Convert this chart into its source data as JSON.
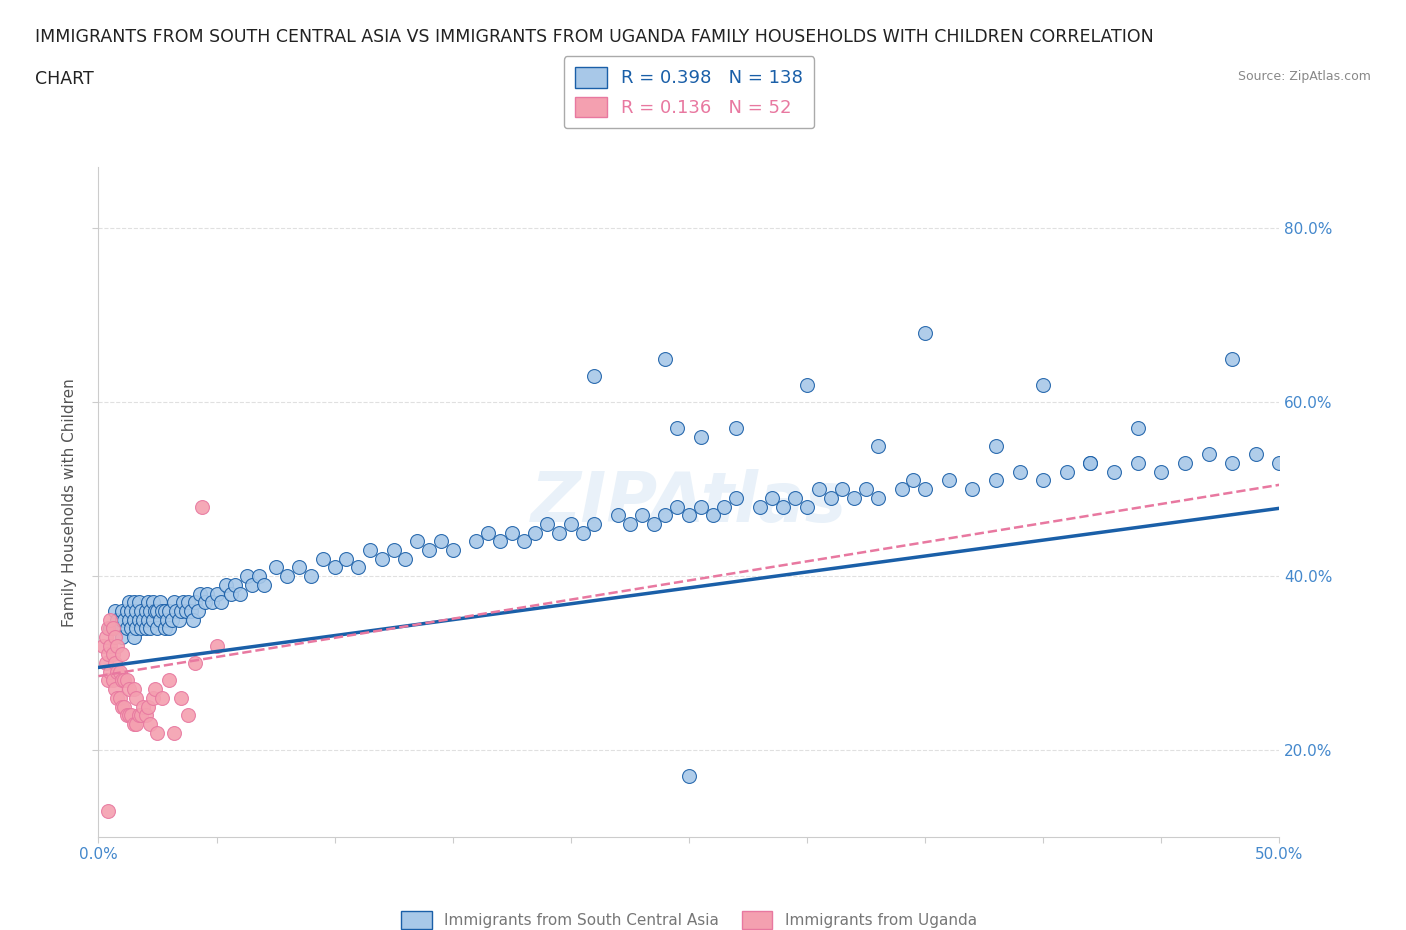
{
  "title_line1": "IMMIGRANTS FROM SOUTH CENTRAL ASIA VS IMMIGRANTS FROM UGANDA FAMILY HOUSEHOLDS WITH CHILDREN CORRELATION",
  "title_line2": "CHART",
  "source": "Source: ZipAtlas.com",
  "ylabel": "Family Households with Children",
  "xlim": [
    0.0,
    0.5
  ],
  "ylim": [
    0.1,
    0.87
  ],
  "xticks": [
    0.0,
    0.05,
    0.1,
    0.15,
    0.2,
    0.25,
    0.3,
    0.35,
    0.4,
    0.45,
    0.5
  ],
  "yticks": [
    0.2,
    0.4,
    0.6,
    0.8
  ],
  "blue_R": 0.398,
  "blue_N": 138,
  "pink_R": 0.136,
  "pink_N": 52,
  "blue_color": "#a8c8e8",
  "pink_color": "#f4a0b0",
  "blue_line_color": "#1a5fa8",
  "pink_line_color": "#e878a0",
  "legend_label_blue": "Immigrants from South Central Asia",
  "legend_label_pink": "Immigrants from Uganda",
  "watermark": "ZIPAtlas",
  "background_color": "#ffffff",
  "grid_color": "#e0e0e0",
  "title_fontsize": 13,
  "axis_label_fontsize": 11,
  "tick_label_color": "#4488cc",
  "blue_x": [
    0.005,
    0.007,
    0.008,
    0.009,
    0.01,
    0.01,
    0.01,
    0.011,
    0.012,
    0.012,
    0.013,
    0.013,
    0.014,
    0.014,
    0.015,
    0.015,
    0.015,
    0.016,
    0.016,
    0.017,
    0.017,
    0.018,
    0.018,
    0.019,
    0.02,
    0.02,
    0.021,
    0.021,
    0.022,
    0.022,
    0.023,
    0.023,
    0.024,
    0.025,
    0.025,
    0.026,
    0.026,
    0.027,
    0.028,
    0.028,
    0.029,
    0.03,
    0.03,
    0.031,
    0.032,
    0.033,
    0.034,
    0.035,
    0.036,
    0.037,
    0.038,
    0.039,
    0.04,
    0.041,
    0.042,
    0.043,
    0.045,
    0.046,
    0.048,
    0.05,
    0.052,
    0.054,
    0.056,
    0.058,
    0.06,
    0.063,
    0.065,
    0.068,
    0.07,
    0.075,
    0.08,
    0.085,
    0.09,
    0.095,
    0.1,
    0.105,
    0.11,
    0.115,
    0.12,
    0.125,
    0.13,
    0.135,
    0.14,
    0.145,
    0.15,
    0.16,
    0.165,
    0.17,
    0.175,
    0.18,
    0.185,
    0.19,
    0.195,
    0.2,
    0.205,
    0.21,
    0.22,
    0.225,
    0.23,
    0.235,
    0.24,
    0.245,
    0.25,
    0.255,
    0.26,
    0.265,
    0.27,
    0.28,
    0.285,
    0.29,
    0.295,
    0.3,
    0.305,
    0.31,
    0.315,
    0.32,
    0.325,
    0.33,
    0.34,
    0.345,
    0.35,
    0.36,
    0.37,
    0.38,
    0.39,
    0.4,
    0.41,
    0.42,
    0.43,
    0.44,
    0.45,
    0.46,
    0.47,
    0.48,
    0.49,
    0.5,
    0.245,
    0.255
  ],
  "blue_y": [
    0.34,
    0.36,
    0.35,
    0.34,
    0.33,
    0.35,
    0.36,
    0.35,
    0.34,
    0.36,
    0.35,
    0.37,
    0.34,
    0.36,
    0.33,
    0.35,
    0.37,
    0.34,
    0.36,
    0.35,
    0.37,
    0.34,
    0.36,
    0.35,
    0.34,
    0.36,
    0.35,
    0.37,
    0.34,
    0.36,
    0.35,
    0.37,
    0.36,
    0.34,
    0.36,
    0.35,
    0.37,
    0.36,
    0.34,
    0.36,
    0.35,
    0.34,
    0.36,
    0.35,
    0.37,
    0.36,
    0.35,
    0.36,
    0.37,
    0.36,
    0.37,
    0.36,
    0.35,
    0.37,
    0.36,
    0.38,
    0.37,
    0.38,
    0.37,
    0.38,
    0.37,
    0.39,
    0.38,
    0.39,
    0.38,
    0.4,
    0.39,
    0.4,
    0.39,
    0.41,
    0.4,
    0.41,
    0.4,
    0.42,
    0.41,
    0.42,
    0.41,
    0.43,
    0.42,
    0.43,
    0.42,
    0.44,
    0.43,
    0.44,
    0.43,
    0.44,
    0.45,
    0.44,
    0.45,
    0.44,
    0.45,
    0.46,
    0.45,
    0.46,
    0.45,
    0.46,
    0.47,
    0.46,
    0.47,
    0.46,
    0.47,
    0.48,
    0.47,
    0.48,
    0.47,
    0.48,
    0.49,
    0.48,
    0.49,
    0.48,
    0.49,
    0.48,
    0.5,
    0.49,
    0.5,
    0.49,
    0.5,
    0.49,
    0.5,
    0.51,
    0.5,
    0.51,
    0.5,
    0.51,
    0.52,
    0.51,
    0.52,
    0.53,
    0.52,
    0.53,
    0.52,
    0.53,
    0.54,
    0.53,
    0.54,
    0.53,
    0.57,
    0.56
  ],
  "blue_y_outliers": [
    0.63,
    0.65,
    0.57,
    0.62,
    0.55,
    0.68,
    0.55,
    0.53,
    0.17,
    0.62,
    0.57,
    0.65
  ],
  "blue_x_outliers": [
    0.21,
    0.24,
    0.27,
    0.3,
    0.33,
    0.35,
    0.38,
    0.42,
    0.25,
    0.4,
    0.44,
    0.48
  ],
  "pink_x": [
    0.002,
    0.003,
    0.003,
    0.004,
    0.004,
    0.004,
    0.005,
    0.005,
    0.005,
    0.006,
    0.006,
    0.006,
    0.007,
    0.007,
    0.007,
    0.008,
    0.008,
    0.008,
    0.009,
    0.009,
    0.01,
    0.01,
    0.01,
    0.011,
    0.011,
    0.012,
    0.012,
    0.013,
    0.013,
    0.014,
    0.015,
    0.015,
    0.016,
    0.016,
    0.017,
    0.018,
    0.019,
    0.02,
    0.021,
    0.022,
    0.023,
    0.024,
    0.025,
    0.027,
    0.03,
    0.032,
    0.035,
    0.038,
    0.041,
    0.044,
    0.05,
    0.004
  ],
  "pink_y": [
    0.32,
    0.3,
    0.33,
    0.31,
    0.28,
    0.34,
    0.29,
    0.32,
    0.35,
    0.28,
    0.31,
    0.34,
    0.27,
    0.3,
    0.33,
    0.26,
    0.29,
    0.32,
    0.26,
    0.29,
    0.25,
    0.28,
    0.31,
    0.25,
    0.28,
    0.24,
    0.28,
    0.24,
    0.27,
    0.24,
    0.23,
    0.27,
    0.23,
    0.26,
    0.24,
    0.24,
    0.25,
    0.24,
    0.25,
    0.23,
    0.26,
    0.27,
    0.22,
    0.26,
    0.28,
    0.22,
    0.26,
    0.24,
    0.3,
    0.48,
    0.32,
    0.13
  ]
}
